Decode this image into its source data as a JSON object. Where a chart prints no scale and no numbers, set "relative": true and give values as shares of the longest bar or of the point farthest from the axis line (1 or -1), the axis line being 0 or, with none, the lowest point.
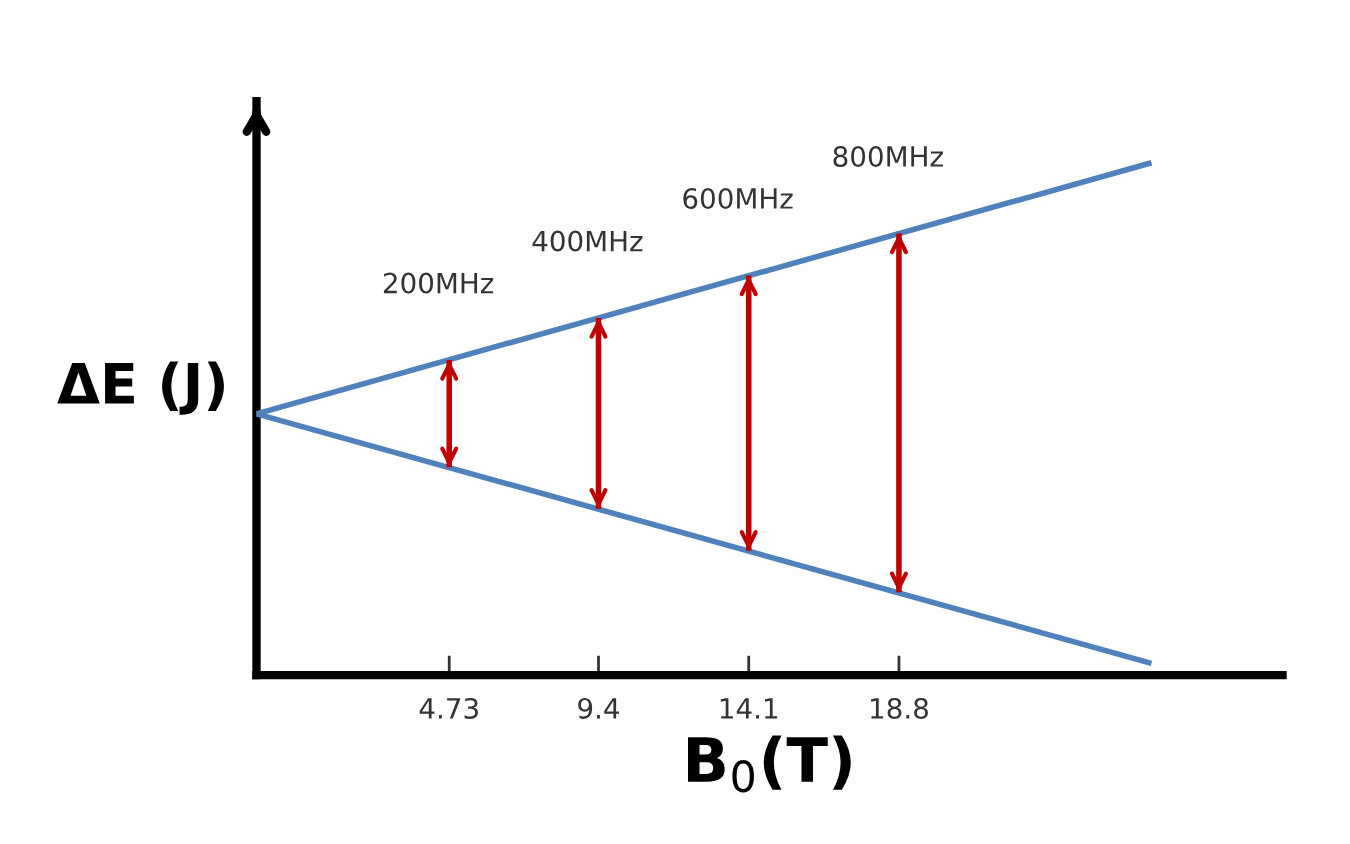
{
  "chart_data": {
    "type": "line",
    "relative": true,
    "xlabel": "B$_{0}$(T)",
    "ylabel": "ΔE (J)",
    "xlim": [
      -1.3,
      30.8
    ],
    "xticks": [
      4.73,
      9.4,
      14.1,
      18.8
    ],
    "grid": false,
    "legend": false,
    "marker": "none",
    "line_style": "solid",
    "series": [
      {
        "color": "#4f81bd",
        "x": [
          -1.3,
          26.7
        ],
        "values": [
          0.51,
          1
        ]
      },
      {
        "color": "#4f81bd",
        "x": [
          -1.3,
          26.7
        ],
        "values": [
          0.51,
          0.023
        ]
      },
      {
        "color": "#c00000",
        "x": [
          4.73,
          4.73
        ],
        "values": [
          0.615,
          0.406
        ]
      },
      {
        "color": "#c00000",
        "x": [
          9.4,
          9.4
        ],
        "values": [
          0.697,
          0.325
        ]
      },
      {
        "color": "#c00000",
        "x": [
          14.1,
          14.1
        ],
        "values": [
          0.78,
          0.243
        ]
      },
      {
        "color": "#c00000",
        "x": [
          18.8,
          18.8
        ],
        "values": [
          0.862,
          0.162
        ]
      }
    ],
    "annotations": [
      {
        "text": "200MHz",
        "x": 4.73,
        "y": 0.615
      },
      {
        "text": "400MHz",
        "x": 9.4,
        "y": 0.697
      },
      {
        "text": "600MHz",
        "x": 14.1,
        "y": 0.78
      },
      {
        "text": "800MHz",
        "x": 18.8,
        "y": 0.862
      }
    ]
  }
}
